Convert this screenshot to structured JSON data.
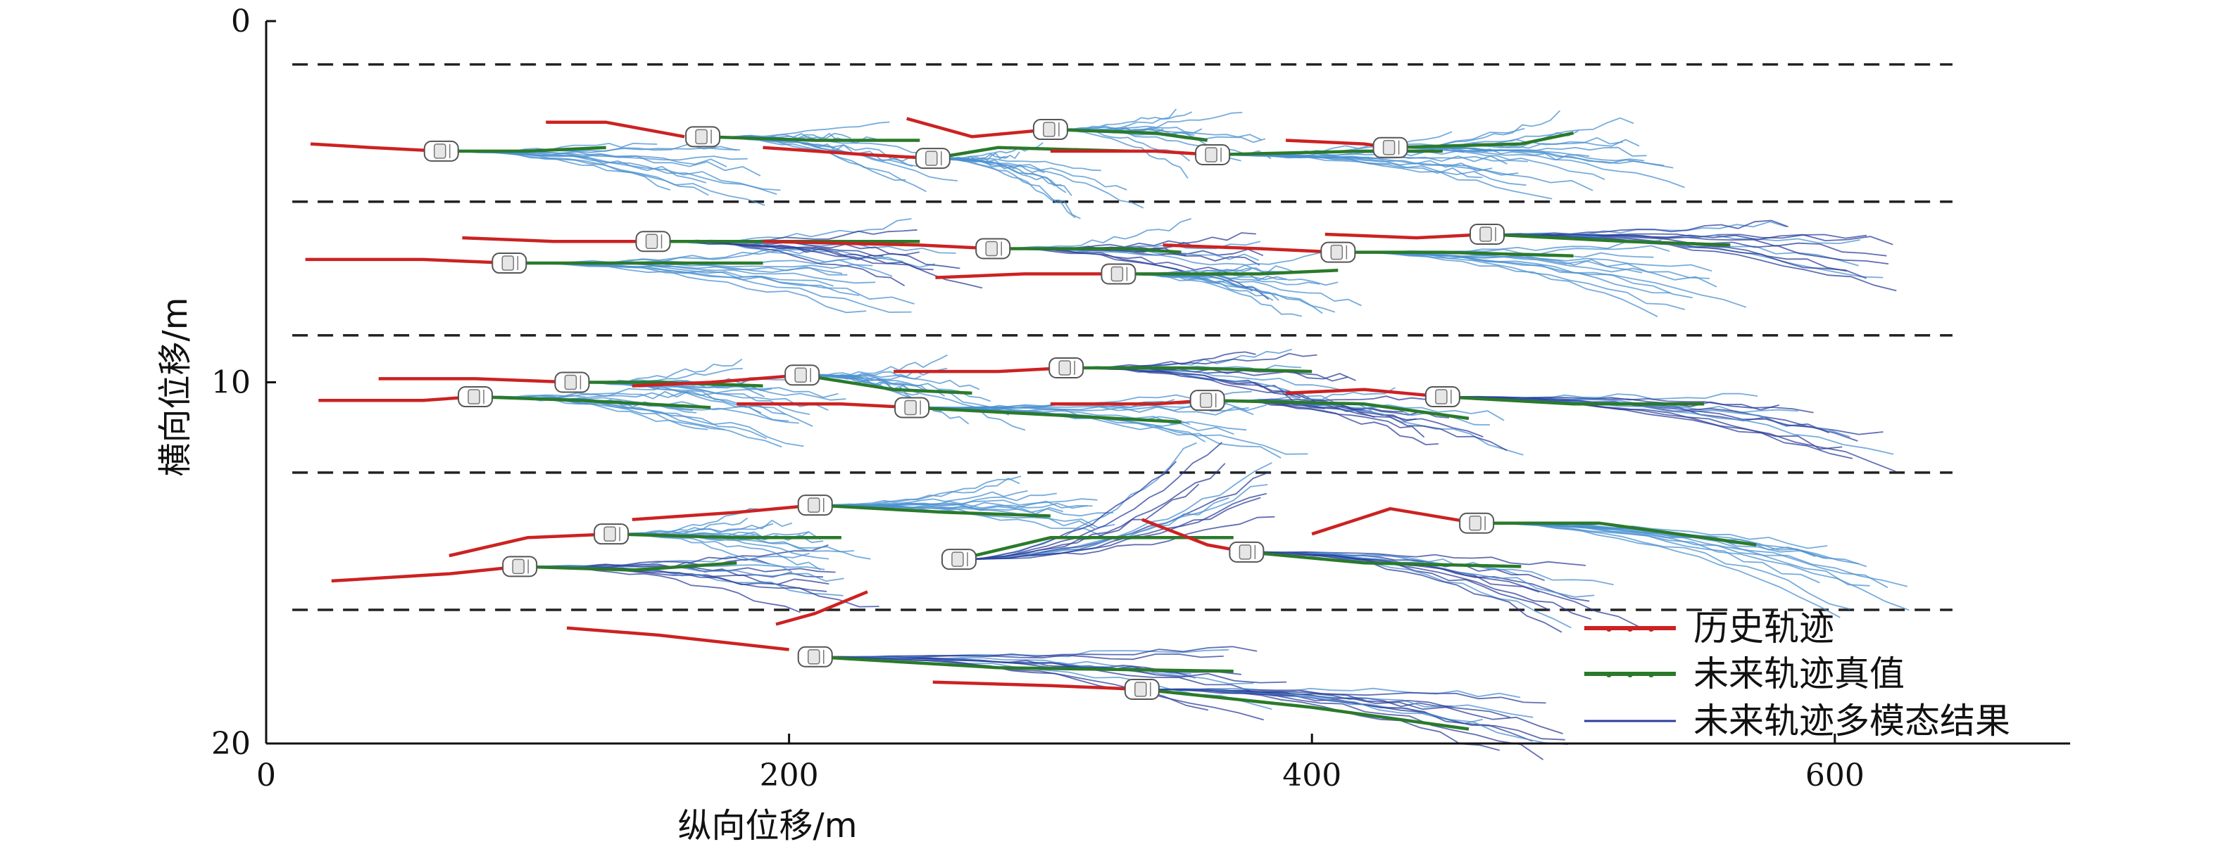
{
  "chart_data": {
    "type": "line",
    "xlabel": "纵向位移/m",
    "ylabel": "横向位移/m",
    "xlim": [
      0,
      690
    ],
    "ylim": [
      0,
      20
    ],
    "y_inverted": true,
    "x_ticks": [
      0,
      200,
      400,
      600
    ],
    "y_ticks": [
      0,
      10,
      20
    ],
    "grid": false,
    "legend_position": "bottom-right",
    "lane_lines": [
      1.2,
      5.0,
      8.7,
      12.5,
      16.3
    ],
    "colors": {
      "history": "#cc2222",
      "truth": "#2a7a2a",
      "multimodal_dark": "#2c3e99",
      "multimodal_light": "#4a90d0",
      "lane_line": "#222222",
      "vehicle": "#ffffff"
    },
    "legend": [
      {
        "key": "history",
        "label": "历史轨迹"
      },
      {
        "key": "truth",
        "label": "未来轨迹真值"
      },
      {
        "key": "multimodal",
        "label": "未来轨迹多模态结果"
      }
    ],
    "vehicles": [
      {
        "history": [
          [
            17,
            3.4
          ],
          [
            40,
            3.5
          ],
          [
            67,
            3.6
          ]
        ],
        "car": [
          67,
          3.6
        ],
        "truth": [
          [
            67,
            3.6
          ],
          [
            100,
            3.6
          ],
          [
            130,
            3.5
          ]
        ],
        "pred_end": [
          190,
          4.2
        ],
        "pred_tone": "light"
      },
      {
        "history": [
          [
            107,
            2.8
          ],
          [
            130,
            2.8
          ],
          [
            160,
            3.2
          ]
        ],
        "car": [
          167,
          3.2
        ],
        "truth": [
          [
            167,
            3.2
          ],
          [
            210,
            3.3
          ],
          [
            250,
            3.3
          ]
        ],
        "pred_end": [
          265,
          3.8
        ],
        "pred_tone": "light"
      },
      {
        "history": [
          [
            190,
            3.5
          ],
          [
            230,
            3.7
          ],
          [
            255,
            3.8
          ]
        ],
        "car": [
          255,
          3.8
        ],
        "truth": [
          [
            255,
            3.8
          ],
          [
            280,
            3.5
          ],
          [
            330,
            3.6
          ]
        ],
        "pred_end": [
          330,
          4.5
        ],
        "pred_tone": "light"
      },
      {
        "history": [
          [
            245,
            2.7
          ],
          [
            270,
            3.2
          ],
          [
            300,
            3.0
          ]
        ],
        "car": [
          300,
          3.0
        ],
        "truth": [
          [
            300,
            3.0
          ],
          [
            340,
            3.1
          ],
          [
            360,
            3.3
          ]
        ],
        "pred_end": [
          380,
          3.3
        ],
        "pred_tone": "light"
      },
      {
        "history": [
          [
            300,
            3.6
          ],
          [
            340,
            3.6
          ],
          [
            362,
            3.7
          ]
        ],
        "car": [
          362,
          3.7
        ],
        "truth": [
          [
            362,
            3.7
          ],
          [
            420,
            3.6
          ],
          [
            450,
            3.6
          ]
        ],
        "pred_end": [
          500,
          4.0
        ],
        "pred_tone": "light"
      },
      {
        "history": [
          [
            390,
            3.3
          ],
          [
            420,
            3.4
          ],
          [
            430,
            3.5
          ]
        ],
        "car": [
          430,
          3.5
        ],
        "truth": [
          [
            430,
            3.5
          ],
          [
            480,
            3.4
          ],
          [
            500,
            3.1
          ]
        ],
        "pred_end": [
          540,
          3.6
        ],
        "pred_tone": "light"
      },
      {
        "history": [
          [
            15,
            6.6
          ],
          [
            60,
            6.6
          ],
          [
            93,
            6.7
          ]
        ],
        "car": [
          93,
          6.7
        ],
        "truth": [
          [
            93,
            6.7
          ],
          [
            150,
            6.7
          ],
          [
            190,
            6.7
          ]
        ],
        "pred_end": [
          250,
          7.2
        ],
        "pred_tone": "light"
      },
      {
        "history": [
          [
            75,
            6.0
          ],
          [
            110,
            6.1
          ],
          [
            148,
            6.1
          ]
        ],
        "car": [
          148,
          6.1
        ],
        "truth": [
          [
            148,
            6.1
          ],
          [
            200,
            6.1
          ],
          [
            250,
            6.1
          ]
        ],
        "pred_end": [
          270,
          6.6
        ],
        "pred_tone": "dark"
      },
      {
        "history": [
          [
            190,
            6.1
          ],
          [
            250,
            6.2
          ],
          [
            278,
            6.3
          ]
        ],
        "car": [
          278,
          6.3
        ],
        "truth": [
          [
            278,
            6.3
          ],
          [
            330,
            6.3
          ],
          [
            350,
            6.4
          ]
        ],
        "pred_end": [
          390,
          6.6
        ],
        "pred_tone": "dark"
      },
      {
        "history": [
          [
            256,
            7.1
          ],
          [
            290,
            7.0
          ],
          [
            326,
            7.0
          ]
        ],
        "car": [
          326,
          7.0
        ],
        "truth": [
          [
            326,
            7.0
          ],
          [
            380,
            7.0
          ],
          [
            410,
            6.9
          ]
        ],
        "pred_end": [
          420,
          7.4
        ],
        "pred_tone": "light"
      },
      {
        "history": [
          [
            343,
            6.2
          ],
          [
            380,
            6.3
          ],
          [
            410,
            6.4
          ]
        ],
        "car": [
          410,
          6.4
        ],
        "truth": [
          [
            410,
            6.4
          ],
          [
            450,
            6.4
          ],
          [
            500,
            6.5
          ]
        ],
        "pred_end": [
          560,
          7.2
        ],
        "pred_tone": "light"
      },
      {
        "history": [
          [
            405,
            5.9
          ],
          [
            440,
            6.0
          ],
          [
            467,
            5.9
          ]
        ],
        "car": [
          467,
          5.9
        ],
        "truth": [
          [
            467,
            5.9
          ],
          [
            520,
            6.1
          ],
          [
            560,
            6.2
          ]
        ],
        "pred_end": [
          630,
          6.5
        ],
        "pred_tone": "dark"
      },
      {
        "history": [
          [
            20,
            10.5
          ],
          [
            60,
            10.5
          ],
          [
            80,
            10.4
          ]
        ],
        "car": [
          80,
          10.4
        ],
        "truth": [
          [
            80,
            10.4
          ],
          [
            120,
            10.5
          ],
          [
            170,
            10.7
          ]
        ],
        "pred_end": [
          200,
          11.0
        ],
        "pred_tone": "light"
      },
      {
        "history": [
          [
            43,
            9.9
          ],
          [
            80,
            9.9
          ],
          [
            117,
            10.0
          ]
        ],
        "car": [
          117,
          10.0
        ],
        "truth": [
          [
            117,
            10.0
          ],
          [
            150,
            10.0
          ],
          [
            190,
            10.1
          ]
        ],
        "pred_end": [
          230,
          10.4
        ],
        "pred_tone": "light"
      },
      {
        "history": [
          [
            140,
            10.1
          ],
          [
            170,
            10.0
          ],
          [
            205,
            9.8
          ]
        ],
        "car": [
          205,
          9.8
        ],
        "truth": [
          [
            205,
            9.8
          ],
          [
            240,
            10.2
          ],
          [
            270,
            10.3
          ]
        ],
        "pred_end": [
          285,
          10.4
        ],
        "pred_tone": "light"
      },
      {
        "history": [
          [
            180,
            10.6
          ],
          [
            220,
            10.6
          ],
          [
            247,
            10.7
          ]
        ],
        "car": [
          247,
          10.7
        ],
        "truth": [
          [
            247,
            10.7
          ],
          [
            300,
            10.9
          ],
          [
            350,
            11.1
          ]
        ],
        "pred_end": [
          390,
          11.1
        ],
        "pred_tone": "light"
      },
      {
        "history": [
          [
            240,
            9.7
          ],
          [
            280,
            9.7
          ],
          [
            306,
            9.6
          ]
        ],
        "car": [
          306,
          9.6
        ],
        "truth": [
          [
            306,
            9.6
          ],
          [
            350,
            9.6
          ],
          [
            400,
            9.7
          ]
        ],
        "pred_end": [
          420,
          10.0
        ],
        "pred_tone": "dark"
      },
      {
        "history": [
          [
            300,
            10.6
          ],
          [
            340,
            10.6
          ],
          [
            360,
            10.5
          ]
        ],
        "car": [
          360,
          10.5
        ],
        "truth": [
          [
            360,
            10.5
          ],
          [
            420,
            10.6
          ],
          [
            460,
            11.0
          ]
        ],
        "pred_end": [
          480,
          11.2
        ],
        "pred_tone": "dark"
      },
      {
        "history": [
          [
            390,
            10.3
          ],
          [
            420,
            10.2
          ],
          [
            450,
            10.4
          ]
        ],
        "car": [
          450,
          10.4
        ],
        "truth": [
          [
            450,
            10.4
          ],
          [
            500,
            10.6
          ],
          [
            550,
            10.6
          ]
        ],
        "pred_end": [
          620,
          11.4
        ],
        "pred_tone": "dark"
      },
      {
        "history": [
          [
            25,
            15.5
          ],
          [
            70,
            15.3
          ],
          [
            97,
            15.1
          ]
        ],
        "car": [
          97,
          15.1
        ],
        "truth": [
          [
            97,
            15.1
          ],
          [
            140,
            15.2
          ],
          [
            180,
            15.0
          ]
        ],
        "pred_end": [
          230,
          15.5
        ],
        "pred_tone": "dark"
      },
      {
        "history": [
          [
            70,
            14.8
          ],
          [
            100,
            14.3
          ],
          [
            132,
            14.2
          ]
        ],
        "car": [
          132,
          14.2
        ],
        "truth": [
          [
            132,
            14.2
          ],
          [
            180,
            14.3
          ],
          [
            220,
            14.3
          ]
        ],
        "pred_end": [
          230,
          14.4
        ],
        "pred_tone": "light"
      },
      {
        "history": [
          [
            140,
            13.8
          ],
          [
            180,
            13.6
          ],
          [
            210,
            13.4
          ]
        ],
        "car": [
          210,
          13.4
        ],
        "truth": [
          [
            210,
            13.4
          ],
          [
            260,
            13.6
          ],
          [
            300,
            13.7
          ]
        ],
        "pred_end": [
          330,
          13.4
        ],
        "pred_tone": "light"
      },
      {
        "history": [
          [
            195,
            16.7
          ],
          [
            210,
            16.4
          ],
          [
            230,
            15.8
          ]
        ],
        "car": [
          265,
          14.9
        ],
        "truth": [
          [
            265,
            14.9
          ],
          [
            300,
            14.3
          ],
          [
            370,
            14.3
          ]
        ],
        "pred_end": [
          390,
          12.6
        ],
        "pred_tone": "dark"
      },
      {
        "history": [
          [
            335,
            13.8
          ],
          [
            360,
            14.5
          ],
          [
            375,
            14.7
          ]
        ],
        "car": [
          375,
          14.7
        ],
        "truth": [
          [
            375,
            14.7
          ],
          [
            420,
            15.0
          ],
          [
            480,
            15.1
          ]
        ],
        "pred_end": [
          520,
          16.0
        ],
        "pred_tone": "dark"
      },
      {
        "history": [
          [
            400,
            14.2
          ],
          [
            430,
            13.5
          ],
          [
            463,
            13.9
          ]
        ],
        "car": [
          463,
          13.9
        ],
        "truth": [
          [
            463,
            13.9
          ],
          [
            510,
            13.9
          ],
          [
            570,
            14.5
          ]
        ],
        "pred_end": [
          630,
          15.5
        ],
        "pred_tone": "light"
      },
      {
        "history": [
          [
            115,
            16.8
          ],
          [
            150,
            17.0
          ],
          [
            200,
            17.4
          ]
        ],
        "car": [
          210,
          17.6
        ],
        "truth": [
          [
            210,
            17.6
          ],
          [
            280,
            17.9
          ],
          [
            370,
            18.0
          ]
        ],
        "pred_end": [
          390,
          18.3
        ],
        "pred_tone": "dark"
      },
      {
        "history": [
          [
            255,
            18.3
          ],
          [
            300,
            18.4
          ],
          [
            335,
            18.5
          ]
        ],
        "car": [
          335,
          18.5
        ],
        "truth": [
          [
            335,
            18.5
          ],
          [
            400,
            19.0
          ],
          [
            460,
            19.6
          ]
        ],
        "pred_end": [
          500,
          19.5
        ],
        "pred_tone": "dark"
      }
    ]
  }
}
